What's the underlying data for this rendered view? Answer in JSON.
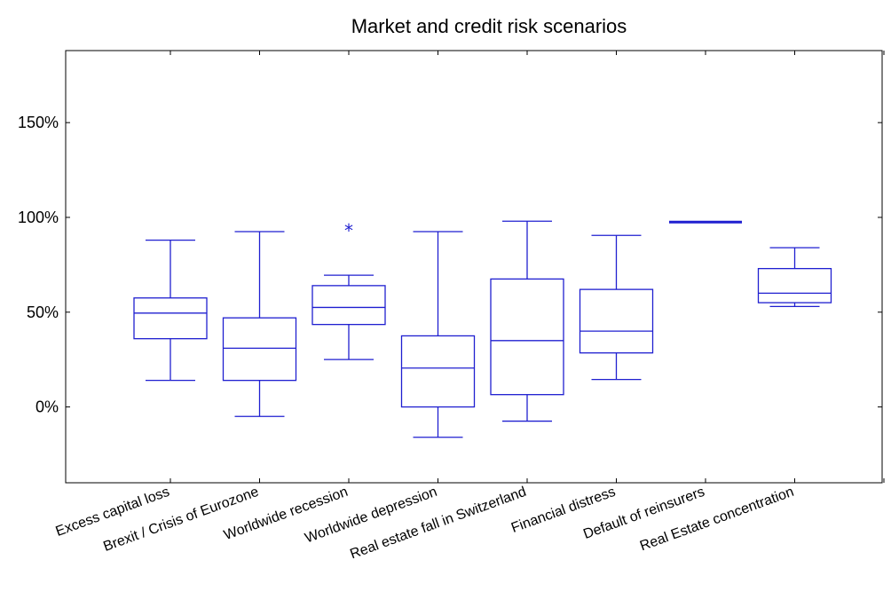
{
  "chart_data": {
    "type": "box",
    "title": "Market and credit risk scenarios",
    "xlabel": "",
    "ylabel": "",
    "ylim": [
      -40,
      188
    ],
    "yticks": [
      0,
      50,
      100,
      150
    ],
    "ytick_labels": [
      "0%",
      "50%",
      "100%",
      "150%"
    ],
    "grid": false,
    "color": "#1f1fd0",
    "categories": [
      "Excess capital loss",
      "Brexit / Crisis of Eurozone",
      "Worldwide recession",
      "Worldwide depression",
      "Real estate fall in Switzerland",
      "Financial distress",
      "Default of reinsurers",
      "Real Estate concentration"
    ],
    "boxes": [
      {
        "min": 14,
        "q1": 36,
        "median": 49.5,
        "q3": 57.5,
        "max": 88,
        "outliers": []
      },
      {
        "min": -5,
        "q1": 14,
        "median": 31,
        "q3": 47,
        "max": 92.5,
        "outliers": []
      },
      {
        "min": 25,
        "q1": 43.5,
        "median": 52.5,
        "q3": 64,
        "max": 69.5,
        "outliers": [
          94
        ]
      },
      {
        "min": -16,
        "q1": 0,
        "median": 20.5,
        "q3": 37.5,
        "max": 92.5,
        "outliers": []
      },
      {
        "min": -7.5,
        "q1": 6.5,
        "median": 35,
        "q3": 67.5,
        "max": 98,
        "outliers": []
      },
      {
        "min": 14.5,
        "q1": 28.5,
        "median": 40,
        "q3": 62,
        "max": 90.5,
        "outliers": []
      },
      {
        "min": 97.5,
        "q1": 97.5,
        "median": 97.5,
        "q3": 97.5,
        "max": 97.5,
        "outliers": []
      },
      {
        "min": 53,
        "q1": 55,
        "median": 60,
        "q3": 73,
        "max": 84,
        "outliers": []
      }
    ]
  }
}
